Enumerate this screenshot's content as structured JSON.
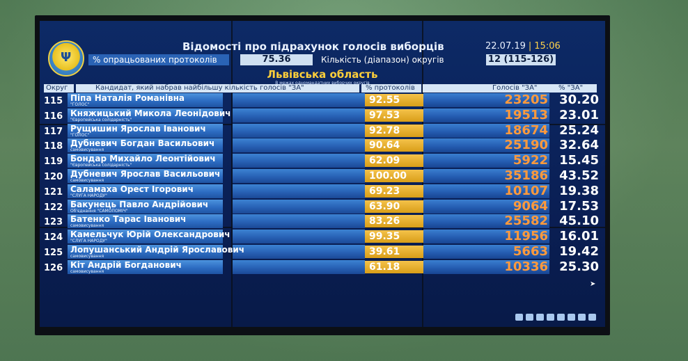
{
  "header": {
    "title": "Відомості про підрахунок голосів виборців",
    "date": "22.07.19",
    "separator": "|",
    "time": "15:06",
    "processed_label": "% опрацьованих протоколів",
    "processed_value": "75.36",
    "districts_label": "Кількість (діапазон) округів",
    "districts_value": "12 (115-126)",
    "region": "Львівська область",
    "region_sub": "В межах одномандатних виборчих округів"
  },
  "columns": {
    "okrug": "Округ",
    "candidate": "Кандидат, який набрав найбільшу кількість голосів \"ЗА\"",
    "protocols": "% протоколів",
    "votes": "Голосів \"ЗА\"",
    "pct_za": "% \"ЗА\""
  },
  "rows": [
    {
      "okrug": "115",
      "name": "Піпа Наталія Романівна",
      "party": "\"ГОЛОС\"",
      "protocols": "92.55",
      "votes": "23205",
      "pct": "30.20"
    },
    {
      "okrug": "116",
      "name": "Княжицький Микола Леонідович",
      "party": "\"Європейська солідарність\"",
      "protocols": "97.53",
      "votes": "19513",
      "pct": "23.01"
    },
    {
      "okrug": "117",
      "name": "Рущишин Ярослав Іванович",
      "party": "\"ГОЛОС\"",
      "protocols": "92.78",
      "votes": "18674",
      "pct": "25.24"
    },
    {
      "okrug": "118",
      "name": "Дубневич Богдан Васильович",
      "party": "самовисування",
      "protocols": "90.64",
      "votes": "25190",
      "pct": "32.64"
    },
    {
      "okrug": "119",
      "name": "Бондар Михайло Леонтійович",
      "party": "\"Європейська солідарність\"",
      "protocols": "62.09",
      "votes": "5922",
      "pct": "15.45"
    },
    {
      "okrug": "120",
      "name": "Дубневич Ярослав Васильович",
      "party": "самовисування",
      "protocols": "100.00",
      "votes": "35186",
      "pct": "43.52"
    },
    {
      "okrug": "121",
      "name": "Саламаха Орест Ігорович",
      "party": "\"СЛУГА НАРОДУ\"",
      "protocols": "69.23",
      "votes": "10107",
      "pct": "19.38"
    },
    {
      "okrug": "122",
      "name": "Бакунець Павло Андрійович",
      "party": "Об'єднання \"САМОПОМІЧ\"",
      "protocols": "63.90",
      "votes": "9064",
      "pct": "17.53"
    },
    {
      "okrug": "123",
      "name": "Батенко Тарас Іванович",
      "party": "самовисування",
      "protocols": "83.26",
      "votes": "25582",
      "pct": "45.10"
    },
    {
      "okrug": "124",
      "name": "Камельчук Юрій Олександрович",
      "party": "\"СЛУГА НАРОДУ\"",
      "protocols": "99.35",
      "votes": "11956",
      "pct": "16.01"
    },
    {
      "okrug": "125",
      "name": "Лопушанський Андрій Ярославович",
      "party": "самовисування",
      "protocols": "39.61",
      "votes": "5663",
      "pct": "19.42"
    },
    {
      "okrug": "126",
      "name": "Кіт Андрій Богданович",
      "party": "самовисування",
      "protocols": "61.18",
      "votes": "10336",
      "pct": "25.30"
    }
  ],
  "pagination": {
    "count": 8
  },
  "colors": {
    "accent_orange": "#ff9a3c",
    "accent_yellow": "#ffcf3a",
    "screen_blue": "#0d2a66"
  }
}
